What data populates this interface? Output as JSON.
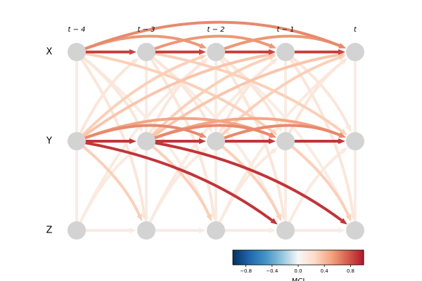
{
  "chart_data": {
    "type": "graph",
    "variables": [
      "X",
      "Y",
      "Z"
    ],
    "times": [
      "t − 4",
      "t − 3",
      "t − 2",
      "t − 1",
      "t"
    ],
    "links": [
      {
        "source": "Z",
        "target": "Z",
        "lag": 1,
        "value": 0.1
      },
      {
        "source": "Y",
        "target": "X",
        "lag": 0,
        "value": 0.1
      },
      {
        "source": "Z",
        "target": "Y",
        "lag": 0,
        "value": 0.1
      },
      {
        "source": "X",
        "target": "Z",
        "lag": 2,
        "value": 0.1
      },
      {
        "source": "Z",
        "target": "X",
        "lag": 2,
        "value": 0.12
      },
      {
        "source": "Z",
        "target": "Y",
        "lag": 1,
        "value": 0.12
      },
      {
        "source": "Y",
        "target": "X",
        "lag": 1,
        "value": 0.15
      },
      {
        "source": "X",
        "target": "Y",
        "lag": 1,
        "value": 0.15
      },
      {
        "source": "X",
        "target": "Z",
        "lag": 1,
        "value": 0.15
      },
      {
        "source": "Y",
        "target": "X",
        "lag": 2,
        "value": 0.3
      },
      {
        "source": "Y",
        "target": "Z",
        "lag": 1,
        "value": 0.3
      },
      {
        "source": "X",
        "target": "Y",
        "lag": 3,
        "value": 0.3
      },
      {
        "source": "Y",
        "target": "X",
        "lag": 3,
        "value": 0.35
      },
      {
        "source": "Y",
        "target": "Y",
        "lag": 3,
        "value": 0.5
      },
      {
        "source": "X",
        "target": "X",
        "lag": 2,
        "value": 0.55
      },
      {
        "source": "X",
        "target": "X",
        "lag": 4,
        "value": 0.6
      },
      {
        "source": "Y",
        "target": "Y",
        "lag": 2,
        "value": 0.6
      },
      {
        "source": "X",
        "target": "X",
        "lag": 1,
        "value": 0.85
      },
      {
        "source": "Y",
        "target": "Y",
        "lag": 1,
        "value": 0.9
      },
      {
        "source": "Y",
        "target": "Z",
        "lag": 3,
        "value": 0.9
      }
    ],
    "colorbar": {
      "label": "MCI",
      "lim": [
        -1,
        1
      ],
      "ticks": [
        {
          "value": -0.8,
          "label": "−0.8"
        },
        {
          "value": -0.4,
          "label": "−0.4"
        },
        {
          "value": 0,
          "label": "0.0"
        },
        {
          "value": 0.4,
          "label": "0.4"
        },
        {
          "value": 0.8,
          "label": "0.8"
        }
      ]
    },
    "node_color": "#d3d3d3"
  }
}
